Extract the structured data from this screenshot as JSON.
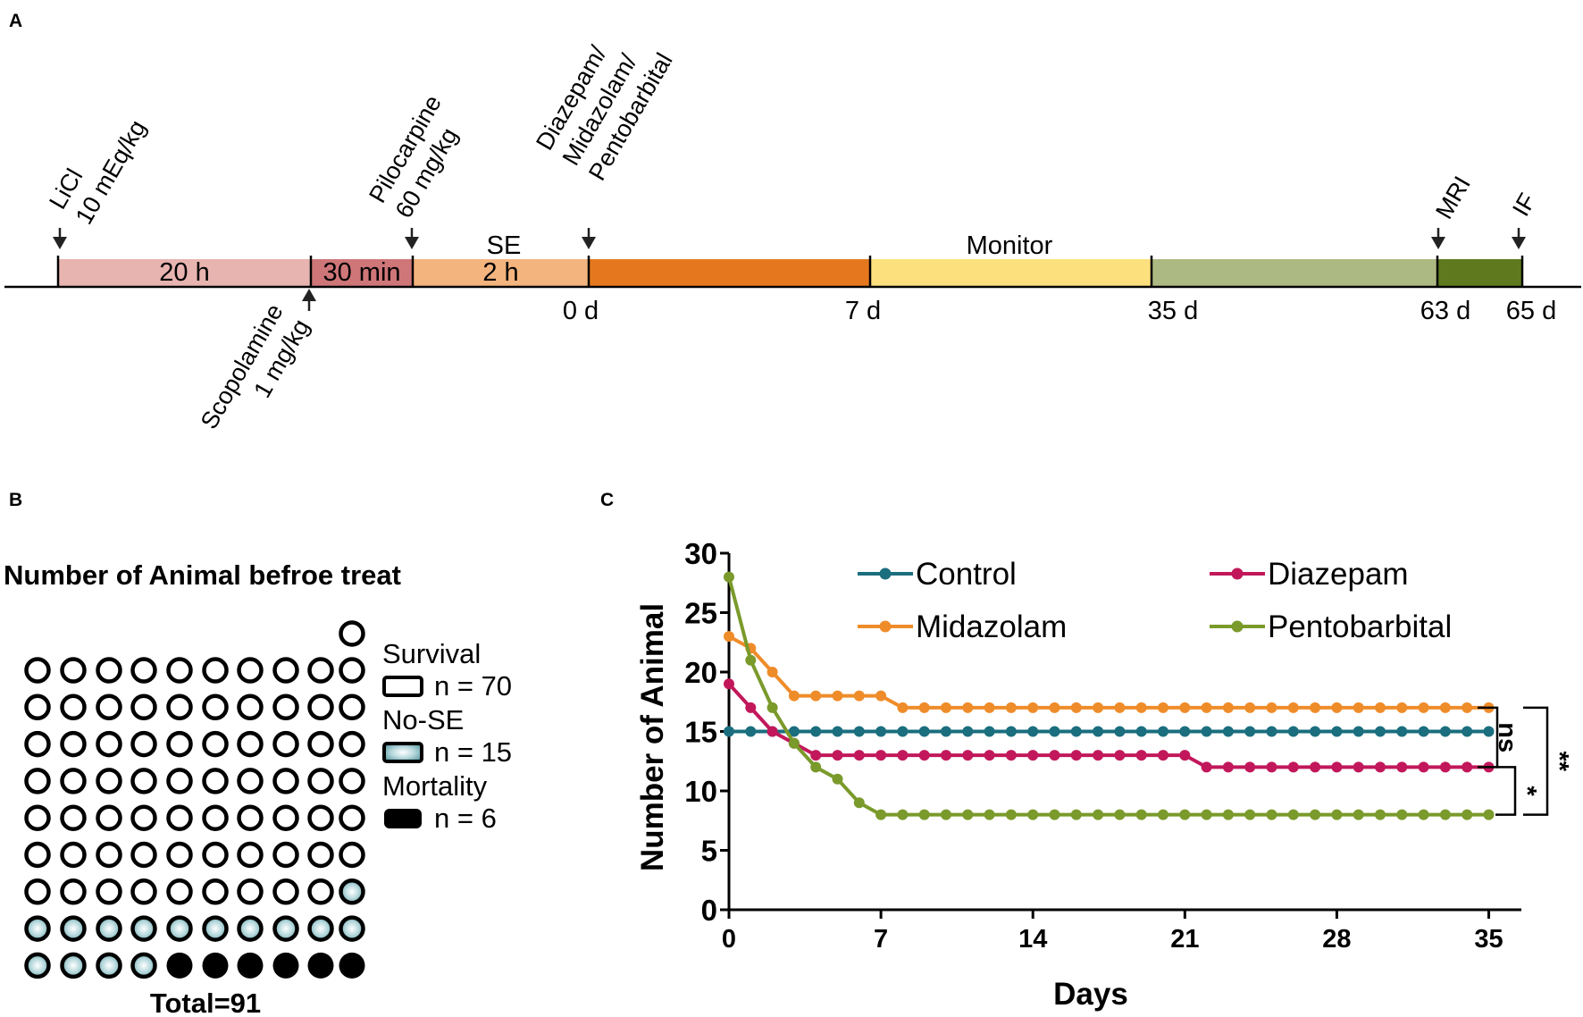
{
  "panel_a": {
    "letter": "A",
    "events_above": [
      {
        "lines": [
          "LiCl",
          "10 mEq/kg"
        ],
        "day": -1.94
      },
      {
        "lines": [
          "Pilocarpine",
          "60 mg/kg"
        ],
        "day": -0.0833
      },
      {
        "lines": [
          "Diazepam/",
          "Midazolam/",
          "Pentobarbital"
        ],
        "day": 0
      },
      {
        "lines": [
          "MRI"
        ],
        "day": 63
      },
      {
        "lines": [
          "IF"
        ],
        "day": 65
      }
    ],
    "events_below": [
      {
        "lines": [
          "Scopolamine",
          "1 mg/kg"
        ],
        "day": -0.104
      }
    ],
    "segments": [
      {
        "label": "20 h",
        "color": "#e8b4b0"
      },
      {
        "label": "30 min",
        "color": "#cf7678"
      },
      {
        "label": "2 h",
        "color": "#f4b47e"
      },
      {
        "label": "",
        "color": "#e5781e"
      },
      {
        "label": "",
        "color": "#fde07e"
      },
      {
        "label": "",
        "color": "#adb982"
      },
      {
        "label": "",
        "color": "#5f7a1e"
      }
    ],
    "above_bar_labels": [
      "SE",
      "Monitor"
    ],
    "day_ticks": [
      "0 d",
      "7 d",
      "35 d",
      "63 d",
      "65 d"
    ]
  },
  "panel_b": {
    "letter": "B",
    "title": "Number of Animal befroe treat",
    "legend": [
      {
        "label": "Survival",
        "count": "n = 70",
        "kind": "survival"
      },
      {
        "label": "No-SE",
        "count": "n = 15",
        "kind": "nose"
      },
      {
        "label": "Mortality",
        "count": "n = 6",
        "kind": "mortality"
      }
    ],
    "counts": {
      "survival": 70,
      "nose": 15,
      "mortality": 6
    },
    "total": "Total=91"
  },
  "panel_c": {
    "letter": "C",
    "chart_data": {
      "type": "line",
      "xlabel": "Days",
      "ylabel": "Number of Animal",
      "xlim": [
        0,
        36.5
      ],
      "ylim": [
        0,
        30
      ],
      "xticks": [
        0,
        7,
        14,
        21,
        28,
        35
      ],
      "yticks": [
        0,
        5,
        10,
        15,
        20,
        25,
        30
      ],
      "x": [
        0,
        1,
        2,
        3,
        4,
        5,
        6,
        7,
        8,
        9,
        10,
        11,
        12,
        13,
        14,
        15,
        16,
        17,
        18,
        19,
        20,
        21,
        22,
        23,
        24,
        25,
        26,
        27,
        28,
        29,
        30,
        31,
        32,
        33,
        34,
        35
      ],
      "series": [
        {
          "name": "Control",
          "color": "#1a6e7e",
          "values": [
            15,
            15,
            15,
            15,
            15,
            15,
            15,
            15,
            15,
            15,
            15,
            15,
            15,
            15,
            15,
            15,
            15,
            15,
            15,
            15,
            15,
            15,
            15,
            15,
            15,
            15,
            15,
            15,
            15,
            15,
            15,
            15,
            15,
            15,
            15,
            15
          ]
        },
        {
          "name": "Diazepam",
          "color": "#c2185b",
          "values": [
            19,
            17,
            15,
            14,
            13,
            13,
            13,
            13,
            13,
            13,
            13,
            13,
            13,
            13,
            13,
            13,
            13,
            13,
            13,
            13,
            13,
            13,
            12,
            12,
            12,
            12,
            12,
            12,
            12,
            12,
            12,
            12,
            12,
            12,
            12,
            12
          ]
        },
        {
          "name": "Midazolam",
          "color": "#ef8c2a",
          "values": [
            23,
            22,
            20,
            18,
            18,
            18,
            18,
            18,
            17,
            17,
            17,
            17,
            17,
            17,
            17,
            17,
            17,
            17,
            17,
            17,
            17,
            17,
            17,
            17,
            17,
            17,
            17,
            17,
            17,
            17,
            17,
            17,
            17,
            17,
            17,
            17
          ]
        },
        {
          "name": "Pentobarbital",
          "color": "#7a9a2b",
          "values": [
            28,
            21,
            17,
            14,
            12,
            11,
            9,
            8,
            8,
            8,
            8,
            8,
            8,
            8,
            8,
            8,
            8,
            8,
            8,
            8,
            8,
            8,
            8,
            8,
            8,
            8,
            8,
            8,
            8,
            8,
            8,
            8,
            8,
            8,
            8,
            8
          ]
        }
      ],
      "significance": [
        {
          "label": "ns",
          "from": 17,
          "to": 12
        },
        {
          "label": "*",
          "from": 12,
          "to": 8
        },
        {
          "label": "**",
          "from": 17,
          "to": 8
        }
      ]
    }
  }
}
